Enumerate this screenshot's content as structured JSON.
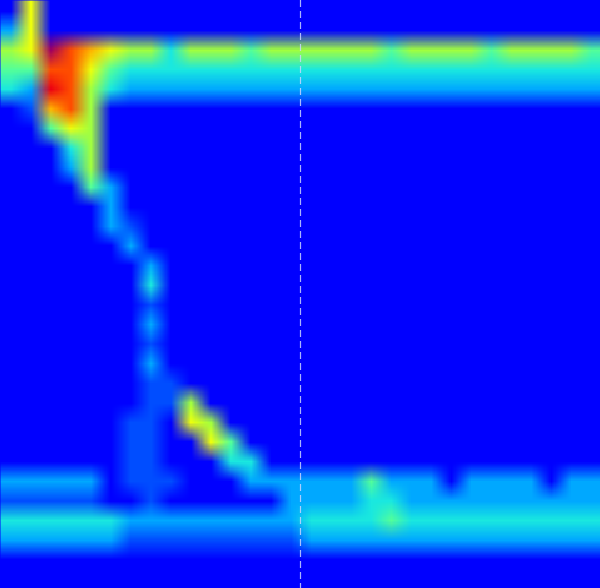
{
  "chart_data": {
    "type": "heatmap",
    "xlim": [
      0,
      30
    ],
    "ylim": [
      30,
      0
    ],
    "tick_labels": false,
    "zlim": [
      0,
      10
    ],
    "vline_x": 15,
    "cells": [
      [
        0,
        6,
        0,
        0,
        0,
        0,
        0,
        0,
        0,
        0,
        0,
        0,
        0,
        0,
        0,
        0,
        0,
        0,
        0,
        0,
        0,
        0,
        0,
        0,
        0,
        0,
        0,
        0,
        0,
        0
      ],
      [
        2,
        6,
        0,
        0,
        0,
        0,
        0,
        0,
        0,
        0,
        0,
        0,
        0,
        0,
        0,
        0,
        0,
        0,
        0,
        0,
        0,
        0,
        0,
        0,
        0,
        0,
        0,
        0,
        0,
        0
      ],
      [
        5,
        6,
        10,
        8,
        7,
        6,
        5,
        5,
        3,
        5,
        5,
        5,
        4,
        5,
        5,
        5,
        5,
        5,
        5,
        4,
        5,
        5,
        5,
        5,
        4,
        5,
        5,
        5,
        5,
        4
      ],
      [
        4,
        4,
        8,
        8,
        6,
        4,
        3,
        3,
        3,
        3,
        3,
        3,
        3,
        3,
        3,
        3,
        3,
        3,
        3,
        3,
        3,
        3,
        3,
        3,
        3,
        3,
        3,
        3,
        3,
        3
      ],
      [
        3,
        2,
        9,
        8,
        5,
        3,
        2,
        2,
        2,
        2,
        2,
        2,
        2,
        2,
        2,
        2,
        2,
        2,
        2,
        2,
        2,
        2,
        2,
        2,
        2,
        2,
        2,
        2,
        2,
        2
      ],
      [
        0,
        1,
        7,
        8,
        5,
        0,
        0,
        0,
        0,
        0,
        0,
        0,
        0,
        0,
        0,
        0,
        0,
        0,
        0,
        0,
        0,
        0,
        0,
        0,
        0,
        0,
        0,
        0,
        0,
        0
      ],
      [
        0,
        0,
        4,
        6,
        5,
        0,
        0,
        0,
        0,
        0,
        0,
        0,
        0,
        0,
        0,
        0,
        0,
        0,
        0,
        0,
        0,
        0,
        0,
        0,
        0,
        0,
        0,
        0,
        0,
        0
      ],
      [
        0,
        0,
        0,
        3,
        5,
        0,
        0,
        0,
        0,
        0,
        0,
        0,
        0,
        0,
        0,
        0,
        0,
        0,
        0,
        0,
        0,
        0,
        0,
        0,
        0,
        0,
        0,
        0,
        0,
        0
      ],
      [
        0,
        0,
        0,
        2,
        5,
        0,
        0,
        0,
        0,
        0,
        0,
        0,
        0,
        0,
        0,
        0,
        0,
        0,
        0,
        0,
        0,
        0,
        0,
        0,
        0,
        0,
        0,
        0,
        0,
        0
      ],
      [
        0,
        0,
        0,
        0,
        4,
        2,
        0,
        0,
        0,
        0,
        0,
        0,
        0,
        0,
        0,
        0,
        0,
        0,
        0,
        0,
        0,
        0,
        0,
        0,
        0,
        0,
        0,
        0,
        0,
        0
      ],
      [
        0,
        0,
        0,
        0,
        0,
        2,
        0,
        0,
        0,
        0,
        0,
        0,
        0,
        0,
        0,
        0,
        0,
        0,
        0,
        0,
        0,
        0,
        0,
        0,
        0,
        0,
        0,
        0,
        0,
        0
      ],
      [
        0,
        0,
        0,
        0,
        0,
        2,
        1,
        0,
        0,
        0,
        0,
        0,
        0,
        0,
        0,
        0,
        0,
        0,
        0,
        0,
        0,
        0,
        0,
        0,
        0,
        0,
        0,
        0,
        0,
        0
      ],
      [
        0,
        0,
        0,
        0,
        0,
        0,
        2,
        0,
        0,
        0,
        0,
        0,
        0,
        0,
        0,
        0,
        0,
        0,
        0,
        0,
        0,
        0,
        0,
        0,
        0,
        0,
        0,
        0,
        0,
        0
      ],
      [
        0,
        0,
        0,
        0,
        0,
        0,
        0,
        2,
        0,
        0,
        0,
        0,
        0,
        0,
        0,
        0,
        0,
        0,
        0,
        0,
        0,
        0,
        0,
        0,
        0,
        0,
        0,
        0,
        0,
        0
      ],
      [
        0,
        0,
        0,
        0,
        0,
        0,
        0,
        3,
        0,
        0,
        0,
        0,
        0,
        0,
        0,
        0,
        0,
        0,
        0,
        0,
        0,
        0,
        0,
        0,
        0,
        0,
        0,
        0,
        0,
        0
      ],
      [
        0,
        0,
        0,
        0,
        0,
        0,
        0,
        1,
        0,
        0,
        0,
        0,
        0,
        0,
        0,
        0,
        0,
        0,
        0,
        0,
        0,
        0,
        0,
        0,
        0,
        0,
        0,
        0,
        0,
        0
      ],
      [
        0,
        0,
        0,
        0,
        0,
        0,
        0,
        2,
        0,
        0,
        0,
        0,
        0,
        0,
        0,
        0,
        0,
        0,
        0,
        0,
        0,
        0,
        0,
        0,
        0,
        0,
        0,
        0,
        0,
        0
      ],
      [
        0,
        0,
        0,
        0,
        0,
        0,
        0,
        1,
        0,
        0,
        0,
        0,
        0,
        0,
        0,
        0,
        0,
        0,
        0,
        0,
        0,
        0,
        0,
        0,
        0,
        0,
        0,
        0,
        0,
        0
      ],
      [
        0,
        0,
        0,
        0,
        0,
        0,
        0,
        2,
        0,
        0,
        0,
        0,
        0,
        0,
        0,
        0,
        0,
        0,
        0,
        0,
        0,
        0,
        0,
        0,
        0,
        0,
        0,
        0,
        0,
        0
      ],
      [
        0,
        0,
        0,
        0,
        0,
        0,
        0,
        1,
        1,
        0,
        0,
        0,
        0,
        0,
        0,
        0,
        0,
        0,
        0,
        0,
        0,
        0,
        0,
        0,
        0,
        0,
        0,
        0,
        0,
        0
      ],
      [
        0,
        0,
        0,
        0,
        0,
        0,
        0,
        1,
        1,
        5,
        0,
        0,
        0,
        0,
        0,
        0,
        0,
        0,
        0,
        0,
        0,
        0,
        0,
        0,
        0,
        0,
        0,
        0,
        0,
        0
      ],
      [
        0,
        0,
        0,
        0,
        0,
        0,
        1,
        1,
        0,
        6,
        5,
        0,
        0,
        0,
        0,
        0,
        0,
        0,
        0,
        0,
        0,
        0,
        0,
        0,
        0,
        0,
        0,
        0,
        0,
        0
      ],
      [
        0,
        0,
        0,
        0,
        0,
        0,
        1,
        1,
        0,
        0,
        6,
        4,
        0,
        0,
        0,
        0,
        0,
        0,
        0,
        0,
        0,
        0,
        0,
        0,
        0,
        0,
        0,
        0,
        0,
        0
      ],
      [
        0,
        0,
        0,
        0,
        0,
        0,
        1,
        1,
        0,
        0,
        0,
        3,
        3,
        0,
        0,
        0,
        0,
        0,
        0,
        0,
        0,
        0,
        0,
        0,
        0,
        0,
        0,
        0,
        0,
        0
      ],
      [
        2,
        2,
        2,
        2,
        2,
        0,
        1,
        1,
        1,
        0,
        0,
        0,
        2,
        2,
        2,
        2,
        2,
        2,
        4,
        2,
        2,
        2,
        0,
        2,
        2,
        2,
        2,
        0,
        2,
        2
      ],
      [
        1,
        1,
        1,
        1,
        1,
        0,
        0,
        1,
        0,
        0,
        0,
        0,
        0,
        0,
        2,
        2,
        2,
        2,
        3,
        3,
        2,
        2,
        2,
        2,
        2,
        2,
        2,
        2,
        2,
        2
      ],
      [
        3,
        3,
        3,
        3,
        3,
        3,
        2,
        2,
        2,
        2,
        2,
        2,
        2,
        2,
        2,
        3,
        3,
        3,
        3,
        4,
        3,
        3,
        3,
        3,
        3,
        3,
        3,
        3,
        3,
        3
      ],
      [
        2,
        2,
        2,
        2,
        2,
        2,
        1,
        1,
        1,
        1,
        1,
        1,
        1,
        1,
        1,
        2,
        2,
        2,
        2,
        2,
        2,
        2,
        2,
        2,
        2,
        2,
        2,
        2,
        2,
        2
      ],
      [
        0,
        0,
        0,
        0,
        0,
        0,
        0,
        0,
        0,
        0,
        0,
        0,
        0,
        0,
        0,
        0,
        0,
        0,
        0,
        0,
        0,
        0,
        0,
        0,
        0,
        0,
        0,
        0,
        0,
        0
      ],
      [
        0,
        0,
        0,
        0,
        0,
        0,
        0,
        0,
        0,
        0,
        0,
        0,
        0,
        0,
        0,
        0,
        0,
        0,
        0,
        0,
        0,
        0,
        0,
        0,
        0,
        0,
        0,
        0,
        0,
        0
      ]
    ]
  }
}
